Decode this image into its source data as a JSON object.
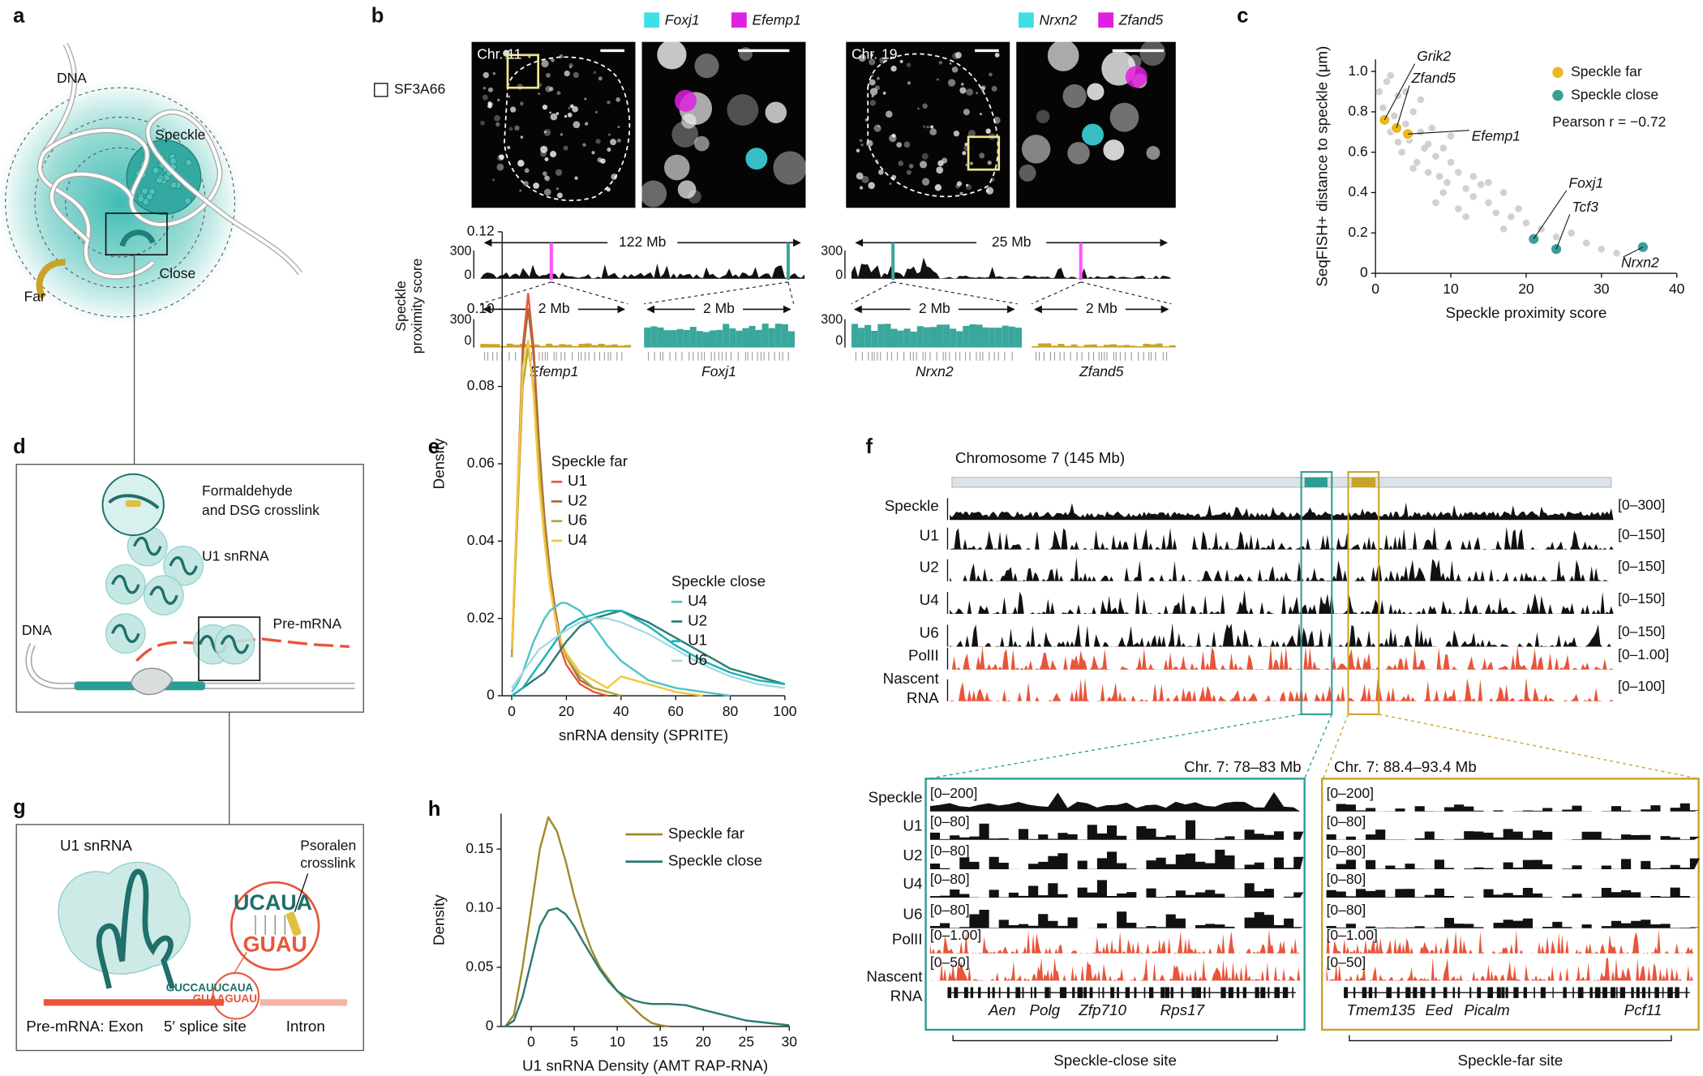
{
  "panels": {
    "a": {
      "letter": "a",
      "dna": "DNA",
      "speckle": "Speckle",
      "close": "Close",
      "far": "Far"
    },
    "b": {
      "letter": "b",
      "stain": "SF3A66",
      "axis_label_lines": [
        "Speckle",
        "proximity score"
      ],
      "left": {
        "chromosome": "Chr. 11",
        "probes": [
          "Foxj1",
          "Efemp1"
        ],
        "span": "122 Mb",
        "track_ticks": [
          "300",
          "0"
        ],
        "zoom_ticks": [
          "300",
          "0"
        ],
        "zoom": [
          {
            "span": "2 Mb",
            "gene": "Efemp1"
          },
          {
            "span": "2 Mb",
            "gene": "Foxj1"
          }
        ]
      },
      "right": {
        "chromosome": "Chr. 19",
        "probes": [
          "Nrxn2",
          "Zfand5"
        ],
        "span": "25 Mb",
        "track_ticks": [
          "300",
          "0"
        ],
        "zoom_ticks": [
          "300",
          "0"
        ],
        "zoom": [
          {
            "span": "2 Mb",
            "gene": "Nrxn2"
          },
          {
            "span": "2 Mb",
            "gene": "Zfand5"
          }
        ]
      }
    },
    "d": {
      "letter": "d",
      "crosslink_lines": [
        "Formaldehyde",
        "and DSG crosslink"
      ],
      "u1": "U1 snRNA",
      "premrna": "Pre-mRNA",
      "dna": "DNA"
    },
    "f": {
      "letter": "f",
      "chromosome": "Chromosome 7 (145 Mb)",
      "tracks": [
        {
          "name": "Speckle",
          "range": "[0–300]"
        },
        {
          "name": "U1",
          "range": "[0–150]"
        },
        {
          "name": "U2",
          "range": "[0–150]"
        },
        {
          "name": "U4",
          "range": "[0–150]"
        },
        {
          "name": "U6",
          "range": "[0–150]"
        },
        {
          "name": "PolII",
          "range": "[0–1.00]"
        },
        {
          "name_lines": [
            "Nascent",
            "RNA"
          ],
          "range": "[0–100]"
        }
      ],
      "zoom_track_names": [
        "Speckle",
        "U1",
        "U2",
        "U4",
        "U6",
        "PolII"
      ],
      "zoom_track_last": [
        "Nascent",
        "RNA"
      ],
      "zooms": [
        {
          "title": "Chr. 7: 78–83 Mb",
          "ranges": [
            "[0–200]",
            "[0–80]",
            "[0–80]",
            "[0–80]",
            "[0–80]",
            "[0–1.00]",
            "[0–50]"
          ],
          "genes": [
            "Aen",
            "Polg",
            "Zfp710",
            "Rps17"
          ],
          "site": "Speckle-close site"
        },
        {
          "title": "Chr. 7: 88.4–93.4 Mb",
          "ranges": [
            "[0–200]",
            "[0–80]",
            "[0–80]",
            "[0–80]",
            "[0–80]",
            "[0–1.00]",
            "[0–50]"
          ],
          "genes": [
            "Tmem135",
            "Eed",
            "Picalm",
            "Pcf11"
          ],
          "site": "Speckle-far site"
        }
      ]
    },
    "g": {
      "letter": "g",
      "u1": "U1 snRNA",
      "psoralen_lines": [
        "Psoralen",
        "crosslink"
      ],
      "top_seq": "UCAUA",
      "bottom_seq": "GUAU",
      "u1_seq": "GUCCAUUCAUA",
      "pre_seq": "GUAAGUAU",
      "labels": [
        "Pre-mRNA:  Exon",
        "5′ splice site",
        "Intron"
      ]
    }
  },
  "chart_data": [
    {
      "panel": "c",
      "type": "scatter",
      "xlabel": "Speckle proximity score",
      "ylabel": "SeqFISH+ distance to speckle (μm)",
      "xlim": [
        0,
        40
      ],
      "ylim": [
        0,
        1.06
      ],
      "xticks": [
        0,
        10,
        20,
        30,
        40
      ],
      "yticks": [
        0,
        0.2,
        0.4,
        0.6,
        0.8,
        {
          "value": 1,
          "label": "1.0"
        }
      ],
      "annotation": "Pearson r = −0.72",
      "series": [
        {
          "color": "#c6c6c6",
          "x": [
            0.5,
            1,
            1.5,
            2,
            2.5,
            3,
            3.5,
            4,
            4.5,
            5,
            5.5,
            6,
            6.5,
            7,
            7.5,
            8,
            8.5,
            9,
            9.5,
            10,
            11,
            12,
            13,
            14,
            15,
            16,
            17,
            18,
            19,
            20,
            22,
            24,
            26,
            28,
            30,
            32,
            2,
            3,
            5,
            7,
            9,
            11,
            13,
            6,
            8,
            4,
            10,
            15,
            12,
            17
          ],
          "y": [
            0.9,
            0.82,
            0.95,
            0.7,
            0.78,
            0.88,
            0.6,
            0.74,
            0.66,
            0.8,
            0.55,
            0.7,
            0.62,
            0.5,
            0.72,
            0.58,
            0.48,
            0.62,
            0.45,
            0.55,
            0.5,
            0.42,
            0.38,
            0.44,
            0.35,
            0.3,
            0.4,
            0.28,
            0.32,
            0.25,
            0.22,
            0.18,
            0.2,
            0.15,
            0.12,
            0.1,
            0.98,
            0.65,
            0.52,
            0.64,
            0.4,
            0.32,
            0.48,
            0.86,
            0.35,
            0.9,
            0.68,
            0.45,
            0.28,
            0.22
          ]
        },
        {
          "name": "Speckle far",
          "color": "#e8b923",
          "x": [
            1.2,
            2.8,
            4.3
          ],
          "y": [
            0.76,
            0.72,
            0.69
          ],
          "labels": [
            "Grik2",
            "Zfand5",
            "Efemp1"
          ]
        },
        {
          "name": "Speckle close",
          "color": "#3a9e98",
          "x": [
            21,
            24,
            35.5
          ],
          "y": [
            0.17,
            0.12,
            0.13
          ],
          "labels": [
            "Foxj1",
            "Tcf3",
            "Nrxn2"
          ]
        }
      ]
    },
    {
      "panel": "e",
      "type": "line",
      "xlabel": "snRNA density (SPRITE)",
      "ylabel": "Density",
      "xlim": [
        -3.5,
        100
      ],
      "ylim": [
        0,
        0.12
      ],
      "xticks": [
        0,
        20,
        40,
        60,
        80,
        100
      ],
      "yticks": [
        0,
        0.02,
        0.04,
        0.06,
        0.08,
        {
          "value": 0.1,
          "label": "0.10"
        },
        0.12
      ],
      "x": [
        0,
        2,
        4,
        6,
        8,
        10,
        12,
        14,
        16,
        18,
        20,
        25,
        30,
        35,
        40,
        50,
        60,
        70,
        80,
        90,
        100
      ],
      "groups": [
        {
          "name": "Speckle far",
          "series": [
            {
              "name": "U1",
              "color": "#e8553a",
              "values": [
                0.01,
                0.05,
                0.09,
                0.104,
                0.09,
                0.065,
                0.045,
                0.03,
                0.02,
                0.012,
                0.008,
                0.003,
                0.001,
                0,
                null,
                null,
                null,
                null,
                null,
                null,
                null
              ]
            },
            {
              "name": "U2",
              "color": "#a86a3c",
              "values": [
                0.01,
                0.048,
                0.088,
                0.1,
                0.088,
                0.065,
                0.046,
                0.032,
                0.022,
                0.014,
                0.01,
                0.004,
                0.002,
                0.001,
                null,
                null,
                null,
                null,
                null,
                null,
                null
              ]
            },
            {
              "name": "U6",
              "color": "#b8a832",
              "values": [
                0.01,
                0.045,
                0.08,
                0.09,
                0.08,
                0.06,
                0.042,
                0.03,
                0.02,
                0.014,
                0.01,
                0.005,
                0.002,
                0.001,
                0,
                null,
                null,
                null,
                null,
                null,
                null
              ]
            },
            {
              "name": "U4",
              "color": "#f5c542",
              "values": [
                0.012,
                0.05,
                0.085,
                0.092,
                0.078,
                0.055,
                0.04,
                0.028,
                0.02,
                0.014,
                0.011,
                0.006,
                0.004,
                0.002,
                0.005,
                0.003,
                0.001,
                0,
                null,
                null,
                null
              ]
            }
          ]
        },
        {
          "name": "Speckle close",
          "series": [
            {
              "name": "U4",
              "color": "#4fc3c6",
              "values": [
                0.001,
                0.003,
                0.006,
                0.01,
                0.014,
                0.017,
                0.02,
                0.022,
                0.023,
                0.024,
                0.024,
                0.022,
                0.018,
                0.013,
                0.009,
                0.004,
                0.002,
                0.001,
                0,
                null,
                null
              ]
            },
            {
              "name": "U2",
              "color": "#2a7d74",
              "values": [
                0,
                0.001,
                0.002,
                0.003,
                0.004,
                0.005,
                0.006,
                0.008,
                0.01,
                0.012,
                0.014,
                0.018,
                0.02,
                0.021,
                0.022,
                0.019,
                0.015,
                0.011,
                0.007,
                0.005,
                0.003
              ]
            },
            {
              "name": "U1",
              "color": "#1fb0b8",
              "values": [
                0,
                0.001,
                0.002,
                0.004,
                0.006,
                0.008,
                0.01,
                0.012,
                0.014,
                0.016,
                0.018,
                0.02,
                0.021,
                0.022,
                0.022,
                0.018,
                0.013,
                0.009,
                0.006,
                0.004,
                0.003
              ]
            },
            {
              "name": "U6",
              "color": "#a6dcde",
              "values": [
                0.002,
                0.004,
                0.006,
                0.008,
                0.01,
                0.012,
                0.013,
                0.014,
                0.015,
                0.016,
                0.017,
                0.019,
                0.02,
                0.02,
                0.019,
                0.016,
                0.012,
                0.008,
                0.005,
                0.003,
                0.002
              ]
            }
          ]
        }
      ]
    },
    {
      "panel": "h",
      "type": "line",
      "xlabel": "U1 snRNA Density (AMT RAP-RNA)",
      "ylabel": "Density",
      "xlim": [
        -3.5,
        30
      ],
      "ylim": [
        0,
        0.18
      ],
      "xticks": [
        0,
        5,
        10,
        15,
        20,
        25,
        30
      ],
      "yticks": [
        0,
        0.05,
        {
          "value": 0.1,
          "label": "0.10"
        },
        0.15
      ],
      "x": [
        -3,
        -2,
        -1,
        0,
        1,
        2,
        3,
        4,
        5,
        6,
        7,
        8,
        9,
        10,
        11,
        12,
        13,
        14,
        15,
        16,
        18,
        20,
        25,
        30
      ],
      "groups": [
        {
          "series": [
            {
              "name": "Speckle far",
              "color": "#a08a2a",
              "values": [
                0,
                0.01,
                0.05,
                0.1,
                0.15,
                0.177,
                0.165,
                0.14,
                0.11,
                0.085,
                0.065,
                0.05,
                0.04,
                0.03,
                0.022,
                0.015,
                0.008,
                0.003,
                0.001,
                0,
                null,
                null,
                null,
                null
              ]
            },
            {
              "name": "Speckle close",
              "color": "#2a7a72",
              "values": [
                0,
                0.005,
                0.025,
                0.055,
                0.085,
                0.098,
                0.1,
                0.095,
                0.085,
                0.072,
                0.06,
                0.048,
                0.038,
                0.03,
                0.025,
                0.022,
                0.02,
                0.019,
                0.019,
                0.019,
                0.018,
                0.014,
                0.005,
                0.001
              ]
            }
          ]
        }
      ]
    }
  ]
}
